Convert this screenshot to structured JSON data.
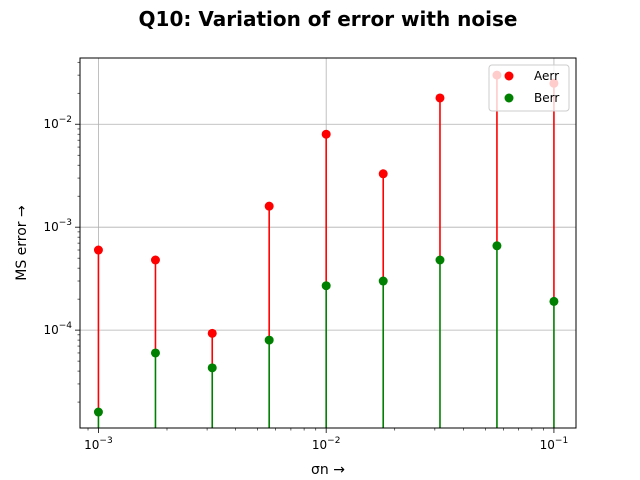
{
  "chart_data": {
    "type": "scatter",
    "title": "Q10: Variation of error with noise",
    "xlabel": "σn →",
    "ylabel": "MS error →",
    "xscale": "log",
    "yscale": "log",
    "xlim": [
      0.00083,
      0.125
    ],
    "ylim": [
      1.12e-05,
      0.044
    ],
    "x_ticks": [
      {
        "value": 0.001,
        "base": "10",
        "exp": "−3"
      },
      {
        "value": 0.01,
        "base": "10",
        "exp": "−2"
      },
      {
        "value": 0.1,
        "base": "10",
        "exp": "−1"
      }
    ],
    "y_ticks": [
      {
        "value": 0.0001,
        "base": "10",
        "exp": "−4"
      },
      {
        "value": 0.001,
        "base": "10",
        "exp": "−3"
      },
      {
        "value": 0.01,
        "base": "10",
        "exp": "−2"
      }
    ],
    "grid": true,
    "legend_position": "top-right",
    "x": [
      0.001,
      0.00178,
      0.00316,
      0.00562,
      0.01,
      0.0178,
      0.0316,
      0.0562,
      0.1
    ],
    "series": [
      {
        "name": "Aerr",
        "color": "#ff0000",
        "values": [
          0.0006,
          0.00048,
          9.3e-05,
          0.0016,
          0.008,
          0.0033,
          0.018,
          0.03,
          0.025
        ]
      },
      {
        "name": "Berr",
        "color": "#008000",
        "values": [
          1.6e-05,
          6e-05,
          4.3e-05,
          8e-05,
          0.00027,
          0.0003,
          0.00048,
          0.00066,
          0.00019
        ]
      }
    ]
  }
}
